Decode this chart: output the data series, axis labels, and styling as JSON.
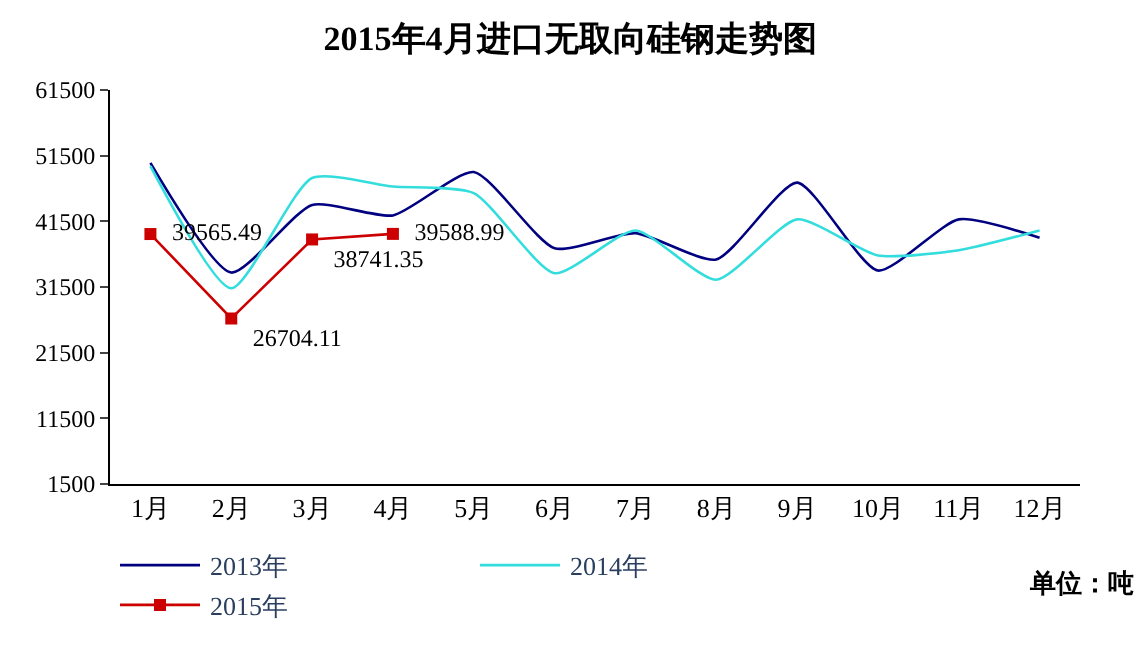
{
  "chart_data": {
    "type": "line",
    "title": "2015年4月进口无取向硅钢走势图",
    "categories": [
      "1月",
      "2月",
      "3月",
      "4月",
      "5月",
      "6月",
      "7月",
      "8月",
      "9月",
      "10月",
      "11月",
      "12月"
    ],
    "series": [
      {
        "name": "2013年",
        "color": "#000080",
        "marker": "none",
        "values": [
          50400,
          33700,
          44000,
          42400,
          49000,
          37400,
          39700,
          35700,
          47400,
          34000,
          41800,
          39000
        ]
      },
      {
        "name": "2014年",
        "color": "#33dddd",
        "marker": "none",
        "values": [
          49900,
          31300,
          48100,
          46800,
          45800,
          33600,
          40100,
          32600,
          41800,
          36300,
          37100,
          40100
        ]
      },
      {
        "name": "2015年",
        "color": "#cc0000",
        "marker": "square",
        "values": [
          39565.49,
          26704.11,
          38741.35,
          39588.99,
          null,
          null,
          null,
          null,
          null,
          null,
          null,
          null
        ],
        "value_labels": [
          "39565.49",
          "26704.11",
          "38741.35",
          "39588.99",
          null,
          null,
          null,
          null,
          null,
          null,
          null,
          null
        ]
      }
    ],
    "ylim": [
      1500,
      61500
    ],
    "yticks": [
      1500,
      11500,
      21500,
      31500,
      41500,
      51500,
      61500
    ],
    "grid": false,
    "legend": "bottom",
    "annotations": [
      "单位：吨"
    ]
  }
}
